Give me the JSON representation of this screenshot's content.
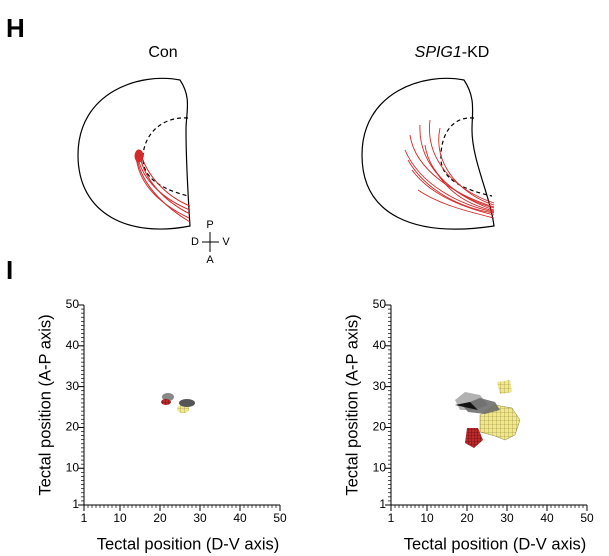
{
  "panel_h": {
    "label": "H",
    "conditions": [
      {
        "title": "Con"
      },
      {
        "title_gene": "SPIG1",
        "title_suffix": "-KD"
      }
    ],
    "compass": {
      "top": "P",
      "left": "D",
      "right": "V",
      "bottom": "A"
    }
  },
  "panel_i": {
    "label": "I",
    "plots": [
      {
        "xlabel": "Tectal position (D-V axis)",
        "ylabel": "Tectal position (A-P axis)",
        "xlim": [
          1,
          50
        ],
        "ylim": [
          1,
          50
        ],
        "xticks": [
          1,
          10,
          20,
          30,
          40,
          50
        ],
        "yticks": [
          1,
          10,
          20,
          30,
          40,
          50
        ]
      },
      {
        "xlabel": "Tectal position (D-V axis)",
        "ylabel": "Tectal position (A-P axis)",
        "xlim": [
          1,
          50
        ],
        "ylim": [
          1,
          50
        ],
        "xticks": [
          1,
          10,
          20,
          30,
          40,
          50
        ],
        "yticks": [
          1,
          10,
          20,
          30,
          40,
          50
        ]
      }
    ]
  }
}
